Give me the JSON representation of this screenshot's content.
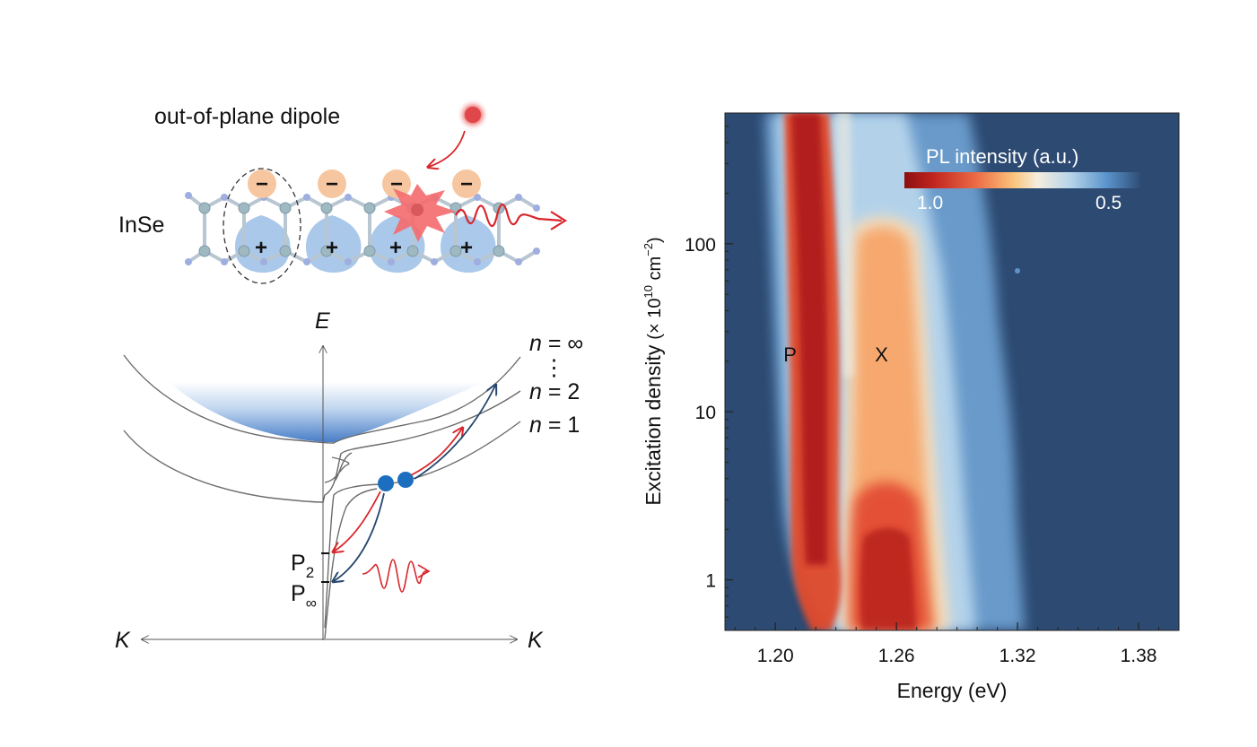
{
  "schematic": {
    "dipole_title": "out-of-plane dipole",
    "material": "InSe",
    "minus_sign": "−",
    "plus_sign": "+",
    "energy_axis": "E",
    "k_left": "K",
    "k_right": "K",
    "bands": [
      {
        "n": "n",
        "eq": " = ∞"
      },
      {
        "n": "n",
        "eq": " = 2"
      },
      {
        "n": "n",
        "eq": " = 1"
      }
    ],
    "dots": "⋮",
    "levels": [
      {
        "base": "P",
        "sub": "2"
      },
      {
        "base": "P",
        "sub": "∞"
      }
    ]
  },
  "colormap": {
    "title": "PL intensity (a.u.)",
    "high_label": "1.0",
    "low_label": "0.5",
    "background": "#2c4a72"
  },
  "heatmap": {
    "peak_p": "P",
    "peak_x": "X"
  },
  "chart_data": {
    "type": "heatmap",
    "xlabel": "Energy (eV)",
    "ylabel_main": "Excitation density",
    "ylabel_unit": "(× 10",
    "ylabel_exp": "10",
    "ylabel_unit2": " cm",
    "ylabel_exp2": "−2",
    "ylabel_close": ")",
    "xlim": [
      1.175,
      1.4
    ],
    "ylim": [
      0.5,
      600
    ],
    "yscale": "log",
    "xticks": [
      1.2,
      1.26,
      1.32,
      1.38
    ],
    "xtick_labels": [
      "1.20",
      "1.26",
      "1.32",
      "1.38"
    ],
    "yticks": [
      1,
      10,
      100
    ],
    "ytick_labels": [
      "1",
      "10",
      "100"
    ],
    "peaks": [
      {
        "name": "P",
        "energy": 1.212,
        "density": 22
      },
      {
        "name": "X",
        "energy": 1.252,
        "density": 22
      }
    ]
  }
}
